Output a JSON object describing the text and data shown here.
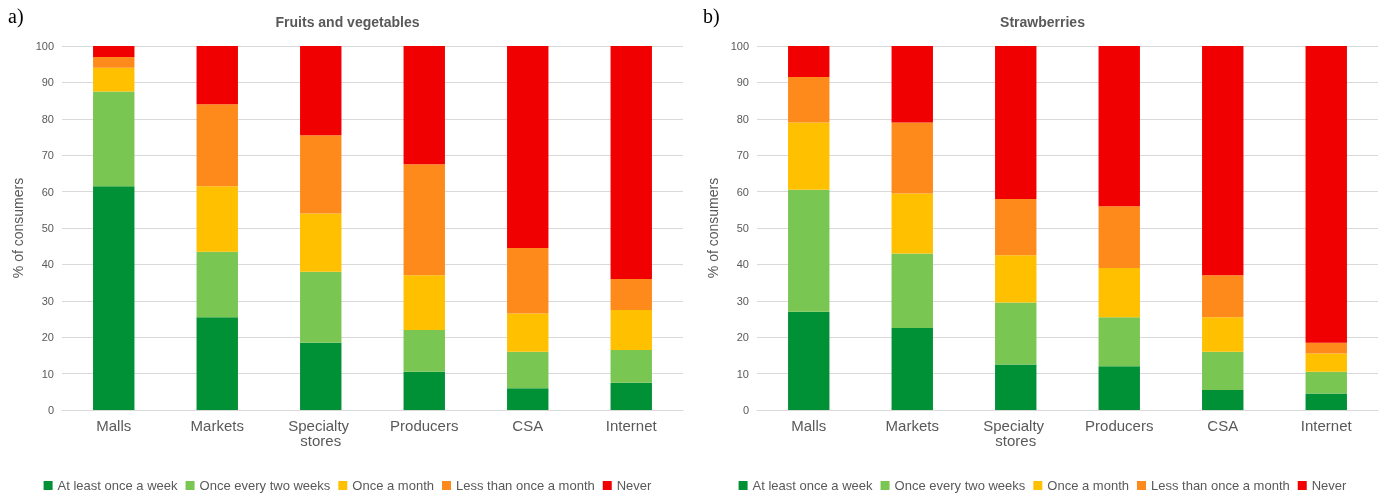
{
  "chart_data": [
    {
      "type": "bar",
      "title": "Fruits and vegetables",
      "annotations": [
        "a)"
      ],
      "ylabel": "% of consumers",
      "categories": [
        "Malls",
        "Markets",
        "Specialty stores",
        "Producers",
        "CSA",
        "Internet"
      ],
      "stacked": true,
      "ylim": [
        0,
        100
      ],
      "yticks": [
        0,
        10,
        20,
        30,
        40,
        50,
        60,
        70,
        80,
        90,
        100
      ],
      "grid": "y",
      "legend": "bottom",
      "series": [
        {
          "name": "At least once a week",
          "color": "#009035",
          "values": [
            61.5,
            25.5,
            18.5,
            10.5,
            6,
            7.5
          ]
        },
        {
          "name": "Once every two weeks",
          "color": "#7ac653",
          "values": [
            26,
            18,
            19.5,
            11.5,
            10,
            9
          ]
        },
        {
          "name": "Once a month",
          "color": "#ffc000",
          "values": [
            6.5,
            18,
            16,
            15,
            10.5,
            11
          ]
        },
        {
          "name": "Less than once a month",
          "color": "#ff8a1c",
          "values": [
            3,
            22.5,
            21.5,
            30.5,
            18,
            8.5
          ]
        },
        {
          "name": "Never",
          "color": "#f00000",
          "values": [
            3,
            16,
            24.5,
            32.5,
            55.5,
            64
          ]
        }
      ]
    },
    {
      "type": "bar",
      "title": "Strawberries",
      "annotations": [
        "b)"
      ],
      "ylabel": "% of consumers",
      "categories": [
        "Malls",
        "Markets",
        "Specialty stores",
        "Producers",
        "CSA",
        "Internet"
      ],
      "stacked": true,
      "ylim": [
        0,
        100
      ],
      "yticks": [
        0,
        10,
        20,
        30,
        40,
        50,
        60,
        70,
        80,
        90,
        100
      ],
      "grid": "y",
      "legend": "bottom",
      "series": [
        {
          "name": "At least once a week",
          "color": "#009035",
          "values": [
            27,
            22.5,
            12.5,
            12,
            5.5,
            4.5
          ]
        },
        {
          "name": "Once every two weeks",
          "color": "#7ac653",
          "values": [
            33.5,
            20.5,
            17,
            13.5,
            10.5,
            6
          ]
        },
        {
          "name": "Once a month",
          "color": "#ffc000",
          "values": [
            18.5,
            16.5,
            13,
            13.5,
            9.5,
            5
          ]
        },
        {
          "name": "Less than once a month",
          "color": "#ff8a1c",
          "values": [
            12.5,
            19.5,
            15.5,
            17,
            11.5,
            3
          ]
        },
        {
          "name": "Never",
          "color": "#f00000",
          "values": [
            8.5,
            21,
            42,
            44,
            63,
            81.5
          ]
        }
      ]
    }
  ]
}
